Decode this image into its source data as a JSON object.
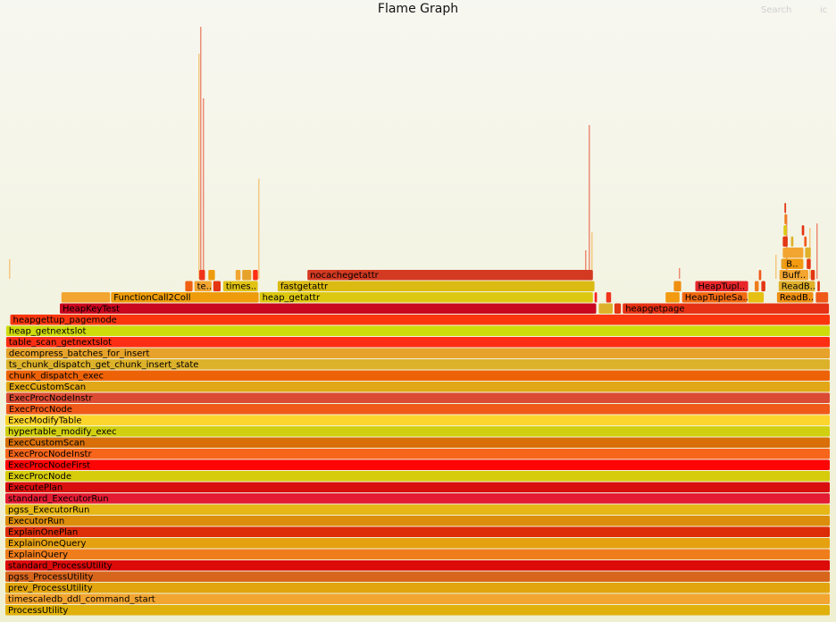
{
  "header": {
    "title": "Flame Graph",
    "search_label": "Search",
    "ic_label": "ic"
  },
  "chart_data": {
    "type": "flamegraph",
    "x_unit": "fraction of total samples (0-1)",
    "frames": [
      {
        "name": "ProcessUtility",
        "level": 0,
        "x": 0.0,
        "w": 1.0,
        "color": "#e0b10b"
      },
      {
        "name": "timescaledb_ddl_command_start",
        "level": 1,
        "x": 0.0,
        "w": 1.0,
        "color": "#f2a530"
      },
      {
        "name": "prev_ProcessUtility",
        "level": 2,
        "x": 0.0,
        "w": 1.0,
        "color": "#e2a50f"
      },
      {
        "name": "pgss_ProcessUtility",
        "level": 3,
        "x": 0.0,
        "w": 1.0,
        "color": "#d8651c"
      },
      {
        "name": "standard_ProcessUtility",
        "level": 4,
        "x": 0.0,
        "w": 1.0,
        "color": "#dd0a0a"
      },
      {
        "name": "ExplainQuery",
        "level": 5,
        "x": 0.0,
        "w": 1.0,
        "color": "#f07d1c"
      },
      {
        "name": "ExplainOneQuery",
        "level": 6,
        "x": 0.0,
        "w": 1.0,
        "color": "#e6a111"
      },
      {
        "name": "ExplainOnePlan",
        "level": 7,
        "x": 0.0,
        "w": 1.0,
        "color": "#dd2c08"
      },
      {
        "name": "ExecutorRun",
        "level": 8,
        "x": 0.0,
        "w": 1.0,
        "color": "#dd8d0c"
      },
      {
        "name": "pgss_ExecutorRun",
        "level": 9,
        "x": 0.0,
        "w": 1.0,
        "color": "#e6b716"
      },
      {
        "name": "standard_ExecutorRun",
        "level": 10,
        "x": 0.0,
        "w": 1.0,
        "color": "#e41c33"
      },
      {
        "name": "ExecutePlan",
        "level": 11,
        "x": 0.0,
        "w": 1.0,
        "color": "#d90f0f"
      },
      {
        "name": "ExecProcNode",
        "level": 12,
        "x": 0.0,
        "w": 1.0,
        "color": "#d6cc0c"
      },
      {
        "name": "ExecProcNodeFirst",
        "level": 13,
        "x": 0.0,
        "w": 1.0,
        "color": "#fe0505"
      },
      {
        "name": "ExecProcNodeInstr",
        "level": 14,
        "x": 0.0,
        "w": 1.0,
        "color": "#f7651b"
      },
      {
        "name": "ExecCustomScan",
        "level": 15,
        "x": 0.0,
        "w": 1.0,
        "color": "#d86f08"
      },
      {
        "name": "hypertable_modify_exec",
        "level": 16,
        "x": 0.0,
        "w": 1.0,
        "color": "#d1d010"
      },
      {
        "name": "ExecModifyTable",
        "level": 17,
        "x": 0.0,
        "w": 1.0,
        "color": "#fcd62c"
      },
      {
        "name": "ExecProcNode",
        "level": 18,
        "x": 0.001,
        "w": 0.999,
        "color": "#f05a19"
      },
      {
        "name": "ExecProcNodeInstr",
        "level": 19,
        "x": 0.001,
        "w": 0.999,
        "color": "#db4b34"
      },
      {
        "name": "ExecCustomScan",
        "level": 20,
        "x": 0.001,
        "w": 0.999,
        "color": "#e2a716"
      },
      {
        "name": "chunk_dispatch_exec",
        "level": 21,
        "x": 0.001,
        "w": 0.999,
        "color": "#ee6207"
      },
      {
        "name": "ts_chunk_dispatch_get_chunk_insert_state",
        "level": 22,
        "x": 0.001,
        "w": 0.999,
        "color": "#ddb22b"
      },
      {
        "name": "decompress_batches_for_insert",
        "level": 23,
        "x": 0.001,
        "w": 0.999,
        "color": "#e6a22a"
      },
      {
        "name": "table_scan_getnextslot",
        "level": 24,
        "x": 0.001,
        "w": 0.999,
        "color": "#fd2e13"
      },
      {
        "name": "heap_getnextslot",
        "level": 25,
        "x": 0.001,
        "w": 0.999,
        "color": "#cfdc0c"
      },
      {
        "name": "heapgettup_pagemode",
        "level": 26,
        "x": 0.006,
        "w": 0.994,
        "color": "#fb360f"
      },
      {
        "name": "HeapKeyTest",
        "level": 27,
        "x": 0.066,
        "w": 0.651,
        "color": "#c9071e"
      },
      {
        "name": "",
        "level": 27,
        "x": 0.719,
        "w": 0.018,
        "color": "#ddb22b"
      },
      {
        "name": "",
        "level": 27,
        "x": 0.738,
        "w": 0.009,
        "color": "#e33612"
      },
      {
        "name": "heapgetpage",
        "level": 27,
        "x": 0.748,
        "w": 0.251,
        "color": "#e63114"
      },
      {
        "name": "",
        "level": 28,
        "x": 0.068,
        "w": 0.06,
        "color": "#f2a530"
      },
      {
        "name": "FunctionCall2Coll",
        "level": 28,
        "x": 0.128,
        "w": 0.18,
        "color": "#ee9c0c"
      },
      {
        "name": "heap_getattr",
        "level": 28,
        "x": 0.308,
        "w": 0.405,
        "color": "#dcc811"
      },
      {
        "name": "",
        "level": 28,
        "x": 0.714,
        "w": 0.004,
        "color": "#fa2323"
      },
      {
        "name": "",
        "level": 28,
        "x": 0.728,
        "w": 0.007,
        "color": "#f0341b"
      },
      {
        "name": "",
        "level": 28,
        "x": 0.8,
        "w": 0.018,
        "color": "#f29a10"
      },
      {
        "name": "HeapTupleSa..",
        "level": 28,
        "x": 0.82,
        "w": 0.08,
        "color": "#f26a12"
      },
      {
        "name": "",
        "level": 28,
        "x": 0.9,
        "w": 0.02,
        "color": "#e6c012"
      },
      {
        "name": "ReadB..",
        "level": 28,
        "x": 0.935,
        "w": 0.045,
        "color": "#ee8f12"
      },
      {
        "name": "",
        "level": 28,
        "x": 0.982,
        "w": 0.016,
        "color": "#f05a19"
      },
      {
        "name": "",
        "level": 29,
        "x": 0.218,
        "w": 0.01,
        "color": "#f06012"
      },
      {
        "name": "te..",
        "level": 29,
        "x": 0.229,
        "w": 0.022,
        "color": "#f2a530"
      },
      {
        "name": "",
        "level": 29,
        "x": 0.252,
        "w": 0.01,
        "color": "#e33612"
      },
      {
        "name": "times..",
        "level": 29,
        "x": 0.264,
        "w": 0.043,
        "color": "#e0c214"
      },
      {
        "name": "fastgetattr",
        "level": 29,
        "x": 0.33,
        "w": 0.385,
        "color": "#dbbb12"
      },
      {
        "name": "",
        "level": 29,
        "x": 0.81,
        "w": 0.01,
        "color": "#ee8f12"
      },
      {
        "name": "HeapTupl..",
        "level": 29,
        "x": 0.836,
        "w": 0.065,
        "color": "#e6262a"
      },
      {
        "name": "",
        "level": 29,
        "x": 0.908,
        "w": 0.006,
        "color": "#f07d1c"
      },
      {
        "name": "",
        "level": 29,
        "x": 0.916,
        "w": 0.006,
        "color": "#e33612"
      },
      {
        "name": "ReadB..",
        "level": 29,
        "x": 0.937,
        "w": 0.045,
        "color": "#e0b02a"
      },
      {
        "name": "",
        "level": 29,
        "x": 0.984,
        "w": 0.004,
        "color": "#e33612"
      },
      {
        "name": "",
        "level": 30,
        "x": 0.235,
        "w": 0.008,
        "color": "#f0341b"
      },
      {
        "name": "",
        "level": 30,
        "x": 0.246,
        "w": 0.009,
        "color": "#ee9c0c"
      },
      {
        "name": "",
        "level": 30,
        "x": 0.279,
        "w": 0.007,
        "color": "#f2a530"
      },
      {
        "name": "",
        "level": 30,
        "x": 0.287,
        "w": 0.012,
        "color": "#e6a22a"
      },
      {
        "name": "",
        "level": 30,
        "x": 0.3,
        "w": 0.007,
        "color": "#fd2e13"
      },
      {
        "name": "nocachegetattr",
        "level": 30,
        "x": 0.366,
        "w": 0.347,
        "color": "#d43a22"
      },
      {
        "name": "",
        "level": 30,
        "x": 0.913,
        "w": 0.004,
        "color": "#f05a19"
      },
      {
        "name": "Buff..",
        "level": 30,
        "x": 0.938,
        "w": 0.036,
        "color": "#f2a530"
      },
      {
        "name": "",
        "level": 30,
        "x": 0.976,
        "w": 0.006,
        "color": "#e33612"
      },
      {
        "name": "",
        "level": 31,
        "x": 0.94,
        "w": 0.016,
        "color": "#e6a22a"
      },
      {
        "name": "B..",
        "level": 31,
        "x": 0.943,
        "w": 0.025,
        "color": "#f29a10"
      },
      {
        "name": "",
        "level": 31,
        "x": 0.971,
        "w": 0.006,
        "color": "#e33612"
      },
      {
        "name": "",
        "level": 32,
        "x": 0.942,
        "w": 0.026,
        "color": "#f2a530"
      },
      {
        "name": "",
        "level": 32,
        "x": 0.969,
        "w": 0.008,
        "color": "#e0b02a"
      },
      {
        "name": "",
        "level": 33,
        "x": 0.942,
        "w": 0.007,
        "color": "#e33612"
      },
      {
        "name": "",
        "level": 33,
        "x": 0.952,
        "w": 0.004,
        "color": "#ddb22b"
      },
      {
        "name": "",
        "level": 33,
        "x": 0.968,
        "w": 0.004,
        "color": "#f05a19"
      },
      {
        "name": "",
        "level": 34,
        "x": 0.943,
        "w": 0.005,
        "color": "#dcc811"
      },
      {
        "name": "",
        "level": 34,
        "x": 0.965,
        "w": 0.004,
        "color": "#e33612"
      },
      {
        "name": "",
        "level": 35,
        "x": 0.944,
        "w": 0.004,
        "color": "#f07d1c"
      },
      {
        "name": "",
        "level": 36,
        "x": 0.944,
        "w": 0.003,
        "color": "#e33612"
      }
    ]
  }
}
